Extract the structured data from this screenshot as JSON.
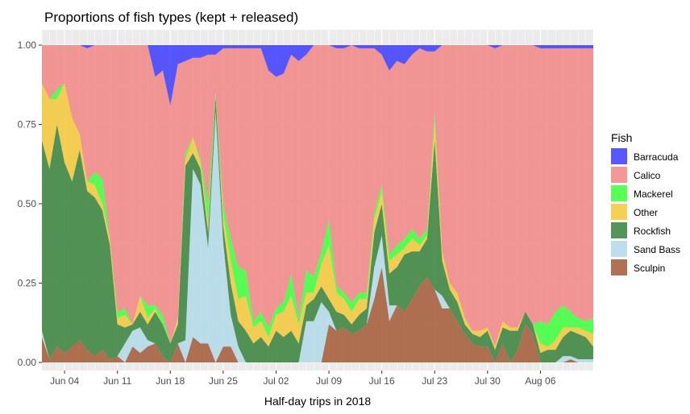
{
  "chart_data": {
    "type": "area",
    "stacked": "fill",
    "title": "Proportions of fish types (kept + released)",
    "xlabel": "Half-day trips in 2018",
    "ylabel": "",
    "ylim": [
      0,
      1
    ],
    "yticks": [
      0,
      0.25,
      0.5,
      0.75,
      1
    ],
    "ytick_labels": [
      "0.00",
      "0.25",
      "0.50",
      "0.75",
      "1.00"
    ],
    "xlim": [
      "2018-06-01",
      "2018-08-13"
    ],
    "xticks": [
      "2018-06-04",
      "2018-06-11",
      "2018-06-18",
      "2018-06-25",
      "2018-07-02",
      "2018-07-09",
      "2018-07-16",
      "2018-07-23",
      "2018-07-30",
      "2018-08-06"
    ],
    "xtick_labels": [
      "Jun 04",
      "Jun 11",
      "Jun 18",
      "Jun 25",
      "Jul 02",
      "Jul 09",
      "Jul 16",
      "Jul 23",
      "Jul 30",
      "Aug 06"
    ],
    "grid": true,
    "legend": {
      "title": "Fish",
      "position": "right"
    },
    "x": [
      "2018-06-01",
      "2018-06-02",
      "2018-06-03",
      "2018-06-04",
      "2018-06-05",
      "2018-06-06",
      "2018-06-07",
      "2018-06-08",
      "2018-06-09",
      "2018-06-10",
      "2018-06-11",
      "2018-06-12",
      "2018-06-13",
      "2018-06-14",
      "2018-06-15",
      "2018-06-16",
      "2018-06-17",
      "2018-06-18",
      "2018-06-19",
      "2018-06-20",
      "2018-06-21",
      "2018-06-22",
      "2018-06-23",
      "2018-06-24",
      "2018-06-25",
      "2018-06-26",
      "2018-06-27",
      "2018-06-28",
      "2018-06-29",
      "2018-06-30",
      "2018-07-01",
      "2018-07-02",
      "2018-07-03",
      "2018-07-04",
      "2018-07-05",
      "2018-07-06",
      "2018-07-07",
      "2018-07-08",
      "2018-07-09",
      "2018-07-10",
      "2018-07-11",
      "2018-07-12",
      "2018-07-13",
      "2018-07-14",
      "2018-07-15",
      "2018-07-16",
      "2018-07-17",
      "2018-07-18",
      "2018-07-19",
      "2018-07-20",
      "2018-07-21",
      "2018-07-22",
      "2018-07-23",
      "2018-07-24",
      "2018-07-25",
      "2018-07-26",
      "2018-07-27",
      "2018-07-28",
      "2018-07-29",
      "2018-07-30",
      "2018-07-31",
      "2018-08-01",
      "2018-08-02",
      "2018-08-03",
      "2018-08-04",
      "2018-08-05",
      "2018-08-06",
      "2018-08-07",
      "2018-08-08",
      "2018-08-09",
      "2018-08-10",
      "2018-08-11",
      "2018-08-12",
      "2018-08-13"
    ],
    "series": [
      {
        "name": "Sculpin",
        "color": "#A0522D",
        "values": [
          0.08,
          0.01,
          0.05,
          0.03,
          0.05,
          0.07,
          0.04,
          0.02,
          0.04,
          0.01,
          0.02,
          0.0,
          0.05,
          0.03,
          0.05,
          0.06,
          0.02,
          0.0,
          0.06,
          0.0,
          0.08,
          0.06,
          0.06,
          0.0,
          0.05,
          0.05,
          0.0,
          0.0,
          0.0,
          0.0,
          0.0,
          0.0,
          0.0,
          0.0,
          0.0,
          0.0,
          0.0,
          0.0,
          0.12,
          0.1,
          0.11,
          0.09,
          0.1,
          0.12,
          0.2,
          0.3,
          0.13,
          0.18,
          0.16,
          0.2,
          0.24,
          0.27,
          0.23,
          0.17,
          0.17,
          0.13,
          0.09,
          0.06,
          0.05,
          0.05,
          0.0,
          0.06,
          0.0,
          0.04,
          0.12,
          0.09,
          0.0,
          0.0,
          0.0,
          0.0,
          0.01,
          0.0,
          0.0,
          0.0
        ]
      },
      {
        "name": "Sand Bass",
        "color": "#ADD8E6",
        "values": [
          0.02,
          0.0,
          0.0,
          0.0,
          0.0,
          0.0,
          0.0,
          0.0,
          0.0,
          0.0,
          0.0,
          0.06,
          0.05,
          0.08,
          0.02,
          0.0,
          0.0,
          0.0,
          0.0,
          0.07,
          0.53,
          0.5,
          0.3,
          0.79,
          0.33,
          0.1,
          0.05,
          0.0,
          0.0,
          0.0,
          0.0,
          0.0,
          0.0,
          0.0,
          0.0,
          0.13,
          0.13,
          0.19,
          0.04,
          0.0,
          0.0,
          0.0,
          0.0,
          0.0,
          0.1,
          0.1,
          0.05,
          0.0,
          0.0,
          0.0,
          0.0,
          0.0,
          0.0,
          0.04,
          0.0,
          0.0,
          0.0,
          0.0,
          0.0,
          0.0,
          0.0,
          0.0,
          0.0,
          0.0,
          0.0,
          0.0,
          0.0,
          0.0,
          0.0,
          0.02,
          0.01,
          0.01,
          0.01,
          0.01
        ]
      },
      {
        "name": "Rockfish",
        "color": "#2E7D32",
        "values": [
          0.6,
          0.6,
          0.7,
          0.6,
          0.52,
          0.6,
          0.5,
          0.5,
          0.44,
          0.36,
          0.1,
          0.05,
          0.02,
          0.05,
          0.05,
          0.1,
          0.1,
          0.06,
          0.06,
          0.55,
          0.05,
          0.05,
          0.05,
          0.05,
          0.05,
          0.1,
          0.08,
          0.1,
          0.06,
          0.08,
          0.05,
          0.1,
          0.08,
          0.1,
          0.06,
          0.05,
          0.07,
          0.05,
          0.04,
          0.06,
          0.04,
          0.03,
          0.05,
          0.05,
          0.11,
          0.1,
          0.1,
          0.12,
          0.18,
          0.15,
          0.11,
          0.12,
          0.47,
          0.11,
          0.06,
          0.06,
          0.03,
          0.03,
          0.03,
          0.05,
          0.04,
          0.05,
          0.1,
          0.06,
          0.04,
          0.03,
          0.03,
          0.04,
          0.04,
          0.06,
          0.08,
          0.08,
          0.07,
          0.04
        ]
      },
      {
        "name": "Other",
        "color": "#F4C430",
        "values": [
          0.18,
          0.22,
          0.08,
          0.25,
          0.2,
          0.05,
          0.03,
          0.04,
          0.02,
          0.02,
          0.02,
          0.04,
          0.0,
          0.05,
          0.02,
          0.01,
          0.0,
          0.0,
          0.02,
          0.02,
          0.05,
          0.02,
          0.03,
          0.0,
          0.04,
          0.07,
          0.07,
          0.11,
          0.05,
          0.05,
          0.03,
          0.05,
          0.08,
          0.11,
          0.06,
          0.04,
          0.02,
          0.07,
          0.17,
          0.06,
          0.05,
          0.04,
          0.05,
          0.03,
          0.04,
          0.04,
          0.04,
          0.04,
          0.02,
          0.04,
          0.02,
          0.01,
          0.06,
          0.03,
          0.02,
          0.03,
          0.02,
          0.01,
          0.02,
          0.01,
          0.01,
          0.02,
          0.01,
          0.01,
          0.0,
          0.0,
          0.03,
          0.01,
          0.03,
          0.03,
          0.01,
          0.02,
          0.02,
          0.04
        ]
      },
      {
        "name": "Mackerel",
        "color": "#32FF32",
        "values": [
          0.0,
          0.0,
          0.03,
          0.0,
          0.0,
          0.0,
          0.0,
          0.04,
          0.08,
          0.0,
          0.02,
          0.02,
          0.0,
          0.0,
          0.04,
          0.01,
          0.03,
          0.0,
          0.0,
          0.02,
          0.0,
          0.01,
          0.06,
          0.01,
          0.03,
          0.07,
          0.1,
          0.08,
          0.02,
          0.03,
          0.03,
          0.02,
          0.03,
          0.07,
          0.02,
          0.07,
          0.05,
          0.04,
          0.08,
          0.02,
          0.02,
          0.03,
          0.02,
          0.02,
          0.02,
          0.02,
          0.02,
          0.03,
          0.03,
          0.03,
          0.02,
          0.02,
          0.03,
          0.0,
          0.0,
          0.0,
          0.0,
          0.0,
          0.0,
          0.0,
          0.0,
          0.0,
          0.0,
          0.0,
          0.0,
          0.0,
          0.07,
          0.07,
          0.09,
          0.07,
          0.05,
          0.03,
          0.03,
          0.05
        ]
      },
      {
        "name": "Calico",
        "color": "#F08080",
        "values": [
          0.12,
          0.17,
          0.14,
          0.12,
          0.23,
          0.28,
          0.42,
          0.4,
          0.42,
          0.61,
          0.84,
          0.83,
          0.88,
          0.79,
          0.82,
          0.72,
          0.77,
          0.75,
          0.8,
          0.29,
          0.25,
          0.32,
          0.47,
          0.12,
          0.49,
          0.6,
          0.69,
          0.7,
          0.86,
          0.83,
          0.81,
          0.73,
          0.72,
          0.69,
          0.81,
          0.68,
          0.73,
          0.65,
          0.55,
          0.75,
          0.77,
          0.81,
          0.77,
          0.77,
          0.52,
          0.41,
          0.58,
          0.58,
          0.55,
          0.55,
          0.6,
          0.56,
          0.19,
          0.65,
          0.75,
          0.78,
          0.86,
          0.9,
          0.9,
          0.89,
          0.94,
          0.87,
          0.89,
          0.89,
          0.84,
          0.88,
          0.86,
          0.87,
          0.83,
          0.81,
          0.83,
          0.85,
          0.86,
          0.85
        ]
      },
      {
        "name": "Barracuda",
        "color": "#3333FF",
        "values": [
          0.0,
          0.0,
          0.0,
          0.0,
          0.0,
          0.0,
          0.01,
          0.0,
          0.0,
          0.0,
          0.0,
          0.0,
          0.0,
          0.0,
          0.0,
          0.1,
          0.08,
          0.19,
          0.06,
          0.05,
          0.04,
          0.04,
          0.03,
          0.03,
          0.01,
          0.01,
          0.01,
          0.01,
          0.01,
          0.01,
          0.08,
          0.1,
          0.09,
          0.03,
          0.05,
          0.03,
          0.0,
          0.0,
          0.0,
          0.01,
          0.01,
          0.0,
          0.01,
          0.01,
          0.01,
          0.03,
          0.08,
          0.05,
          0.06,
          0.03,
          0.01,
          0.02,
          0.02,
          0.0,
          0.0,
          0.0,
          0.0,
          0.0,
          0.0,
          0.0,
          0.01,
          0.0,
          0.0,
          0.0,
          0.0,
          0.0,
          0.01,
          0.01,
          0.01,
          0.01,
          0.01,
          0.01,
          0.01,
          0.01
        ]
      }
    ],
    "legend_order": [
      "Barracuda",
      "Calico",
      "Mackerel",
      "Other",
      "Rockfish",
      "Sand Bass",
      "Sculpin"
    ]
  }
}
